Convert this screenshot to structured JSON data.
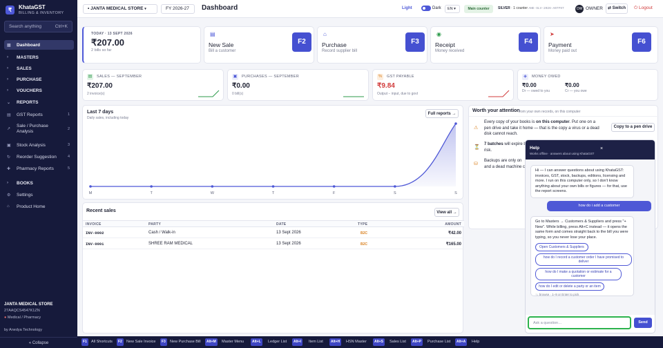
{
  "sidebar": {
    "brand_logo": "₹",
    "brand_name": "KhataGST",
    "brand_sub": "BILLING & INVENTORY",
    "search_placeholder": "Search anything",
    "search_shortcut": "Ctrl+K",
    "items": [
      {
        "label": "Dashboard",
        "icon": "grid-icon",
        "glyph": "▦"
      },
      {
        "label": "MASTERS",
        "glyph": "›"
      },
      {
        "label": "SALES",
        "glyph": "›"
      },
      {
        "label": "PURCHASE",
        "glyph": "›"
      },
      {
        "label": "VOUCHERS",
        "glyph": "›"
      },
      {
        "label": "REPORTS",
        "glyph": "⌄"
      },
      {
        "label": "GST Reports",
        "glyph": "▤",
        "num": "1"
      },
      {
        "label": "Sale / Purchase Analysis",
        "glyph": "↗",
        "num": "2"
      },
      {
        "label": "Stock Analysis",
        "glyph": "▣",
        "num": "3"
      },
      {
        "label": "Reorder Suggestion",
        "glyph": "↻",
        "num": "4"
      },
      {
        "label": "Pharmacy Reports",
        "glyph": "✚",
        "num": "5"
      },
      {
        "label": "BOOKS",
        "glyph": "›"
      },
      {
        "label": "Settings",
        "glyph": "⚙"
      },
      {
        "label": "Product Home",
        "glyph": "⌂"
      }
    ],
    "footer_store": "JANTA MEDICAL STORE",
    "footer_gstin": "27AAQCS4547K1ZN",
    "footer_type": "Medical / Pharmacy",
    "footer_by": "by Anedya Technology",
    "collapse_label": "« Collapse"
  },
  "topbar": {
    "store": "JANTA MEDICAL STORE",
    "fy": "FY 2026-27",
    "title": "Dashboard",
    "light": "Light",
    "dark": "Dark",
    "lang": "EN",
    "counter": "Main counter",
    "license_tier": "SILVER",
    "license_counter": "· 1 counter",
    "license_key": "ANE-SLV-2026-A07F97",
    "avatar": "OW",
    "owner": "OWNER",
    "switch": "Switch",
    "logout": "Logout"
  },
  "today": {
    "label": "TODAY · 13 SEPT 2026",
    "amount": "₹207.00",
    "sub": "2 bills so far"
  },
  "quick_actions": [
    {
      "title": "New Sale",
      "sub": "Bill a customer",
      "key": "F2",
      "glyph": "▤",
      "icon": "receipt-icon"
    },
    {
      "title": "Purchase",
      "sub": "Record supplier bill",
      "key": "F3",
      "glyph": "⌂",
      "icon": "tray-icon"
    },
    {
      "title": "Receipt",
      "sub": "Money received",
      "key": "F4",
      "glyph": "◉",
      "icon": "coins-icon"
    },
    {
      "title": "Payment",
      "sub": "Money paid out",
      "key": "F6",
      "glyph": "➤",
      "icon": "send-icon"
    }
  ],
  "stats": [
    {
      "label": "SALES — SEPTEMBER",
      "value": "₹207.00",
      "sub": "2 invoice(s)",
      "color": "#2b9a4a",
      "glyph": "▤"
    },
    {
      "label": "PURCHASES — SEPTEMBER",
      "value": "₹0.00",
      "sub": "0 bill(s)",
      "color": "#2b9a4a",
      "glyph": "▣"
    },
    {
      "label": "GST PAYABLE",
      "value": "₹9.84",
      "sub": "Output − input, due to govt",
      "color": "#d13b3b",
      "glyph": "%"
    },
    {
      "label": "MONEY OWED",
      "value_a": "₹0.00",
      "sub_a": "Dr — owed to you",
      "value_b": "₹0.00",
      "sub_b": "Cr — you owe",
      "glyph": "◈"
    }
  ],
  "chart_data": {
    "type": "area",
    "title": "Last 7 days",
    "subtitle": "Daily sales, including today",
    "categories": [
      "M",
      "T",
      "W",
      "T",
      "F",
      "S",
      "S"
    ],
    "values": [
      0,
      0,
      0,
      0,
      0,
      0,
      207
    ],
    "color": "#4e58d6"
  },
  "chart_card": {
    "full_reports": "Full reports →"
  },
  "recent_sales": {
    "title": "Recent sales",
    "view_all": "View all →",
    "headers": [
      "INVOICE",
      "PARTY",
      "DATE",
      "TYPE",
      "AMOUNT"
    ],
    "rows": [
      {
        "invoice": "INV-0002",
        "party": "Cash / Walk-in",
        "date": "13 Sept 2026",
        "type": "B2C",
        "amount": "₹42.00"
      },
      {
        "invoice": "INV-0001",
        "party": "SHREE RAM MEDICAL",
        "date": "13 Sept 2026",
        "type": "B2C",
        "amount": "₹165.00"
      }
    ]
  },
  "attention": {
    "title": "Worth your attention",
    "sub": "from your own records, on this computer",
    "row1_a": "Every copy of your books is ",
    "row1_b": "on this computer",
    "row1_c": ". Put one on a pen drive and take it home — that is the copy a virus or a dead disk cannot reach.",
    "row1_btn": "Copy to a pen drive",
    "row2_a": "7 batches",
    "row2_b": " will expire b",
    "row2_c": "risk.",
    "row3": "Backups are only on",
    "row3_b": "and a dead machine ca"
  },
  "help": {
    "title": "Help",
    "sub": "Works offline · answers about using KhataGST",
    "close": "×",
    "intro": "Hi — I can answer questions about using KhataGST: invoices, GST, stock, backups, editions, licensing and more. I run on this computer only, so I don't know anything about your own bills or figures — for that, use the report screens.",
    "user_q": "how do i add a customer",
    "answer": "Go to Masters → Customers & Suppliers and press \"+ New\". While billing, press Alt+C instead — it opens the same form and comes straight back to the bill you were typing, so you never lose your place.",
    "chip_open": "Open Customers & Suppliers",
    "suggestions": [
      "how do I record a customer order I have promised to deliver",
      "how do I make a quotation or estimate for a customer",
      "how do I edit or delete a party or an item"
    ],
    "hint": "↑↓ browse · 1–9 or Enter to pick",
    "ask_placeholder": "Ask a question…",
    "send": "Send"
  },
  "bottombar": [
    {
      "key": "F1",
      "label": "All Shortcuts"
    },
    {
      "key": "F2",
      "label": "New Sale Invoice"
    },
    {
      "key": "F3",
      "label": "New Purchase Bill"
    },
    {
      "key": "Alt+M",
      "label": "Master Menu"
    },
    {
      "key": "Alt+L",
      "label": "Ledger List"
    },
    {
      "key": "Alt+I",
      "label": "Item List"
    },
    {
      "key": "Alt+H",
      "label": "HSN Master"
    },
    {
      "key": "Alt+S",
      "label": "Sales List"
    },
    {
      "key": "Alt+P",
      "label": "Purchase List"
    },
    {
      "key": "Alt+A",
      "label": "Help"
    }
  ]
}
